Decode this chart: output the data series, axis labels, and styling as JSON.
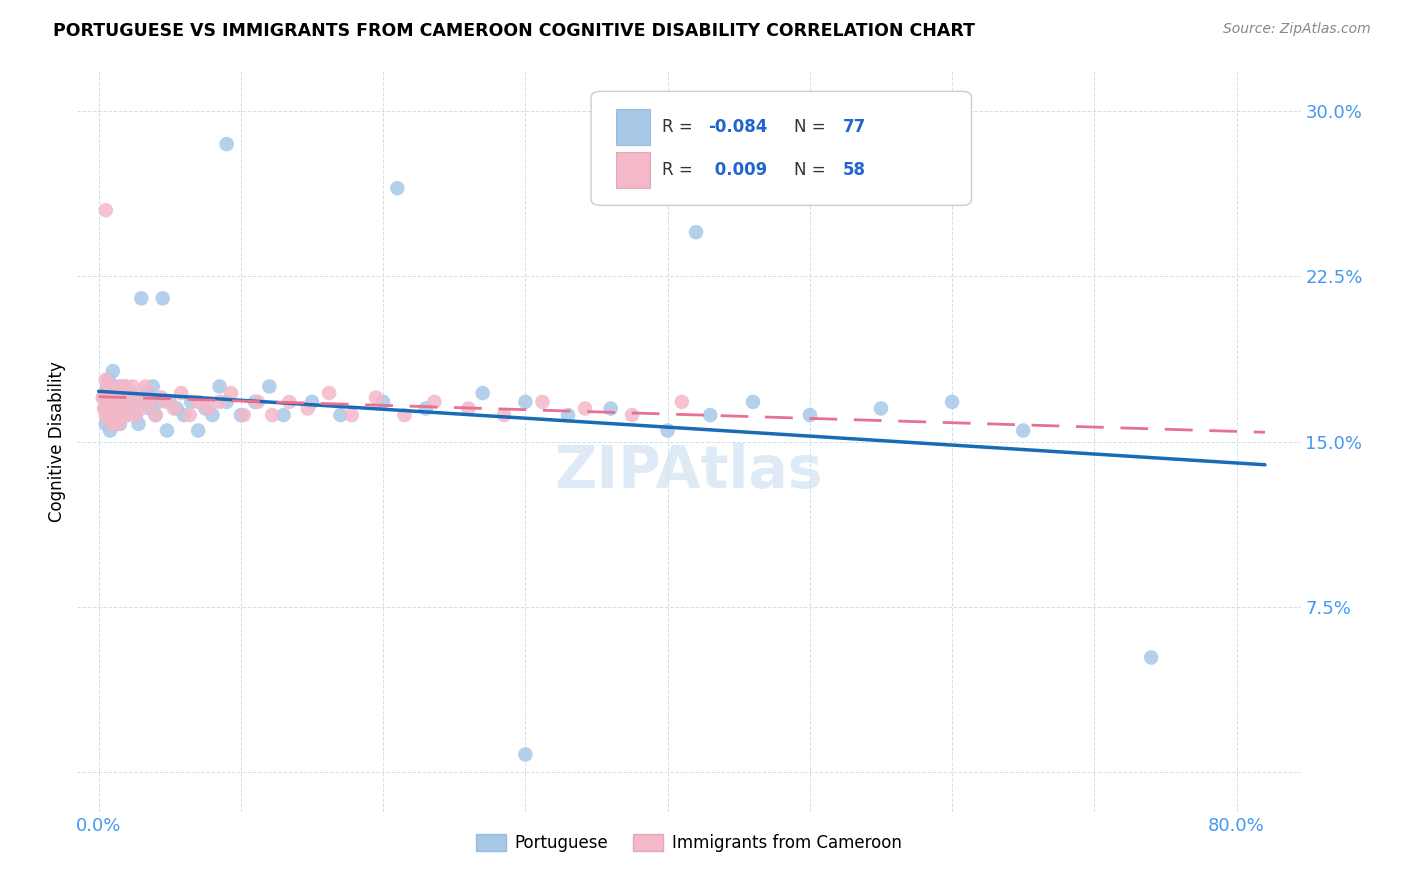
{
  "title": "PORTUGUESE VS IMMIGRANTS FROM CAMEROON COGNITIVE DISABILITY CORRELATION CHART",
  "source": "Source: ZipAtlas.com",
  "ylabel": "Cognitive Disability",
  "ytick_vals": [
    0.0,
    0.075,
    0.15,
    0.225,
    0.3
  ],
  "ytick_labels": [
    "",
    "7.5%",
    "15.0%",
    "22.5%",
    "30.0%"
  ],
  "xtick_vals": [
    0.0,
    0.1,
    0.2,
    0.3,
    0.4,
    0.5,
    0.6,
    0.7,
    0.8
  ],
  "xtick_labels": [
    "0.0%",
    "",
    "",
    "",
    "",
    "",
    "",
    "",
    "80.0%"
  ],
  "xlim": [
    -0.015,
    0.845
  ],
  "ylim": [
    -0.018,
    0.318
  ],
  "r_portuguese": -0.084,
  "n_portuguese": 77,
  "r_cameroon": 0.009,
  "n_cameroon": 58,
  "color_portuguese": "#a8c8e8",
  "color_cameroon": "#f4b8c8",
  "trendline_portuguese_color": "#1a6bb5",
  "trendline_cameroon_color": "#e87090",
  "watermark": "ZIPAtlas",
  "legend_r1": "-0.084",
  "legend_n1": "77",
  "legend_r2": "0.009",
  "legend_n2": "58",
  "portuguese_x": [
    0.003,
    0.004,
    0.005,
    0.005,
    0.006,
    0.006,
    0.007,
    0.007,
    0.008,
    0.008,
    0.009,
    0.009,
    0.01,
    0.01,
    0.01,
    0.011,
    0.011,
    0.012,
    0.012,
    0.013,
    0.014,
    0.015,
    0.015,
    0.016,
    0.017,
    0.018,
    0.019,
    0.02,
    0.021,
    0.022,
    0.023,
    0.025,
    0.026,
    0.027,
    0.028,
    0.03,
    0.032,
    0.034,
    0.036,
    0.038,
    0.04,
    0.042,
    0.045,
    0.048,
    0.05,
    0.055,
    0.06,
    0.065,
    0.07,
    0.075,
    0.08,
    0.085,
    0.09,
    0.1,
    0.11,
    0.12,
    0.13,
    0.15,
    0.17,
    0.2,
    0.23,
    0.27,
    0.3,
    0.33,
    0.36,
    0.4,
    0.43,
    0.46,
    0.5,
    0.55,
    0.6,
    0.65,
    0.3,
    0.74,
    0.09,
    0.21,
    0.42
  ],
  "portuguese_y": [
    0.17,
    0.165,
    0.172,
    0.158,
    0.168,
    0.175,
    0.162,
    0.178,
    0.168,
    0.155,
    0.172,
    0.165,
    0.17,
    0.158,
    0.182,
    0.168,
    0.175,
    0.162,
    0.17,
    0.165,
    0.172,
    0.158,
    0.175,
    0.162,
    0.168,
    0.175,
    0.165,
    0.162,
    0.168,
    0.172,
    0.165,
    0.17,
    0.162,
    0.168,
    0.158,
    0.215,
    0.168,
    0.172,
    0.165,
    0.175,
    0.162,
    0.168,
    0.215,
    0.155,
    0.168,
    0.165,
    0.162,
    0.168,
    0.155,
    0.165,
    0.162,
    0.175,
    0.168,
    0.162,
    0.168,
    0.175,
    0.162,
    0.168,
    0.162,
    0.168,
    0.165,
    0.172,
    0.168,
    0.162,
    0.165,
    0.155,
    0.162,
    0.168,
    0.162,
    0.165,
    0.168,
    0.155,
    0.008,
    0.052,
    0.285,
    0.265,
    0.245
  ],
  "cameroon_x": [
    0.003,
    0.004,
    0.005,
    0.005,
    0.006,
    0.006,
    0.007,
    0.007,
    0.008,
    0.008,
    0.009,
    0.009,
    0.01,
    0.01,
    0.011,
    0.012,
    0.013,
    0.014,
    0.015,
    0.016,
    0.017,
    0.018,
    0.019,
    0.02,
    0.022,
    0.024,
    0.026,
    0.028,
    0.03,
    0.033,
    0.036,
    0.04,
    0.044,
    0.048,
    0.053,
    0.058,
    0.064,
    0.07,
    0.077,
    0.085,
    0.093,
    0.102,
    0.112,
    0.122,
    0.134,
    0.147,
    0.162,
    0.178,
    0.195,
    0.215,
    0.236,
    0.26,
    0.285,
    0.312,
    0.342,
    0.375,
    0.41,
    0.005
  ],
  "cameroon_y": [
    0.17,
    0.165,
    0.162,
    0.178,
    0.168,
    0.175,
    0.165,
    0.172,
    0.162,
    0.175,
    0.168,
    0.158,
    0.172,
    0.165,
    0.17,
    0.165,
    0.172,
    0.158,
    0.168,
    0.175,
    0.162,
    0.168,
    0.175,
    0.162,
    0.168,
    0.175,
    0.162,
    0.17,
    0.165,
    0.175,
    0.168,
    0.162,
    0.17,
    0.168,
    0.165,
    0.172,
    0.162,
    0.168,
    0.165,
    0.168,
    0.172,
    0.162,
    0.168,
    0.162,
    0.168,
    0.165,
    0.172,
    0.162,
    0.17,
    0.162,
    0.168,
    0.165,
    0.162,
    0.168,
    0.165,
    0.162,
    0.168,
    0.255
  ]
}
